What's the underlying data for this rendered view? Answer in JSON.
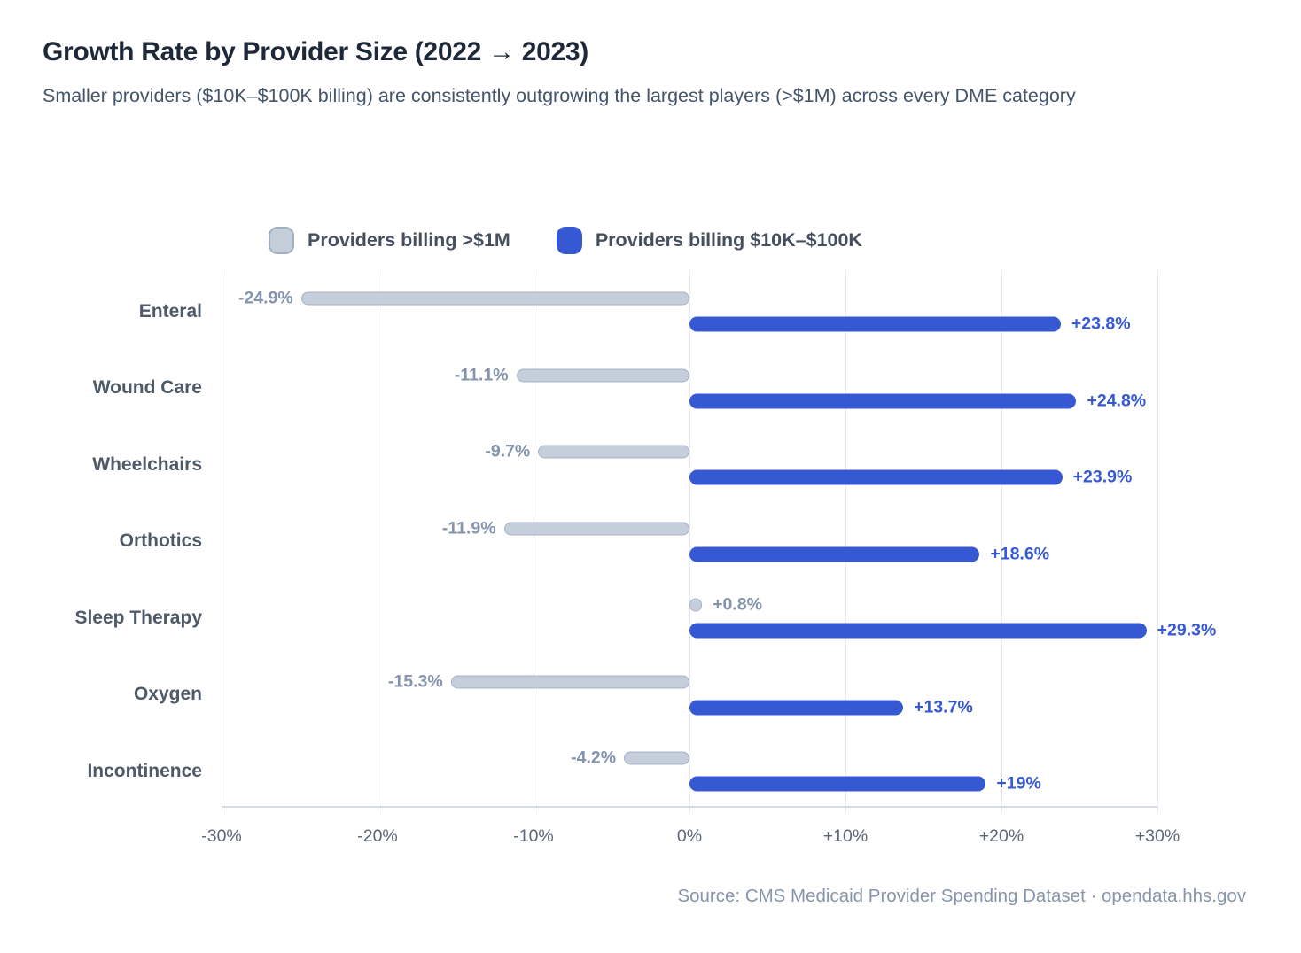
{
  "header": {
    "title": "Growth Rate by Provider Size (2022 → 2023)",
    "subtitle": "Smaller providers ($10K–$100K billing) are consistently outgrowing the largest players (>$1M) across every DME category"
  },
  "legend": [
    {
      "label": "Providers billing >$1M",
      "color": "#c5cfdc"
    },
    {
      "label": "Providers billing $10K–$100K",
      "color": "#3659d3"
    }
  ],
  "source": "Source: CMS Medicaid Provider Spending Dataset · opendata.hhs.gov",
  "colors": {
    "blue": "#3659d3",
    "gray_fill": "#c5cfdc",
    "gray_border": "#a4b3c6",
    "gray_label": "#8494ad",
    "grid": "#e8ebf1"
  },
  "chart_data": {
    "type": "bar",
    "orientation": "horizontal",
    "title": "Growth Rate by Provider Size (2022 → 2023)",
    "xlabel": "",
    "ylabel": "",
    "grid": true,
    "legend_position": "top",
    "categories": [
      "Enteral",
      "Wound Care",
      "Wheelchairs",
      "Orthotics",
      "Sleep Therapy",
      "Oxygen",
      "Incontinence"
    ],
    "series": [
      {
        "name": "Providers billing >$1M",
        "values": [
          -24.9,
          -11.1,
          -9.7,
          -11.9,
          0.8,
          -15.3,
          -4.2
        ],
        "labels": [
          "-24.9%",
          "-11.1%",
          "-9.7%",
          "-11.9%",
          "+0.8%",
          "-15.3%",
          "-4.2%"
        ]
      },
      {
        "name": "Providers billing $10K–$100K",
        "values": [
          23.8,
          24.8,
          23.9,
          18.6,
          29.3,
          13.7,
          19
        ],
        "labels": [
          "+23.8%",
          "+24.8%",
          "+23.9%",
          "+18.6%",
          "+29.3%",
          "+13.7%",
          "+19%"
        ]
      }
    ],
    "axis": {
      "xlim": [
        -30,
        30
      ],
      "ticks": [
        -30,
        -20,
        -10,
        0,
        10,
        20,
        30
      ],
      "tick_labels": [
        "-30%",
        "-20%",
        "-10%",
        "0%",
        "+10%",
        "+20%",
        "+30%"
      ]
    }
  }
}
